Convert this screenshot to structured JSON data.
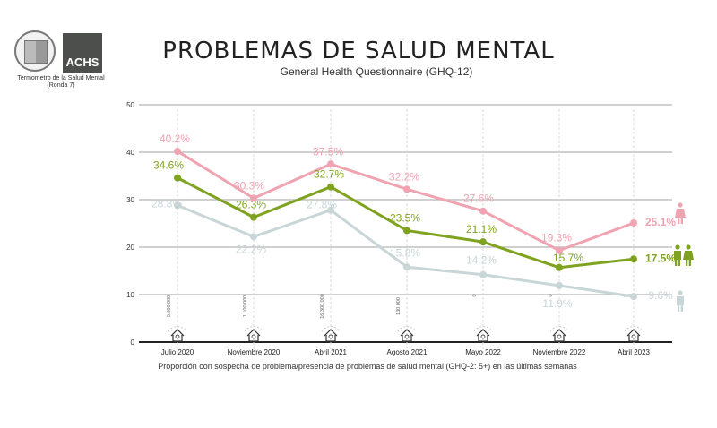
{
  "header": {
    "title": "PROBLEMAS DE SALUD MENTAL",
    "subtitle": "General Health Questionnaire (GHQ-12)",
    "logo_text": "ACHS",
    "logo_caption": "Termometro de la Salud Mental (Ronda 7)"
  },
  "colors": {
    "women": "#f0a3b1",
    "total": "#7fa321",
    "men": "#c8d6d8",
    "grid": "#b5b5b5",
    "axis": "#222222"
  },
  "chart_data": {
    "type": "line",
    "title": "PROBLEMAS DE SALUD MENTAL",
    "subtitle": "General Health Questionnaire (GHQ-12)",
    "xlabel": "Proporción con sospecha de problema/presencia de problemas de salud mental (GHQ-2: 5+) en las últimas semanas",
    "ylabel": "",
    "ylim": [
      0,
      50
    ],
    "yticks": [
      0,
      10,
      20,
      30,
      40,
      50
    ],
    "grid": true,
    "legend": "right (person icons)",
    "categories": [
      "Julio 2020",
      "Noviembre 2020",
      "Abril 2021",
      "Agosto 2021",
      "Mayo 2022",
      "Noviembre 2022",
      "Abril 2023"
    ],
    "series": [
      {
        "name": "Mujeres",
        "icon": "woman-icon",
        "values": [
          40.2,
          30.3,
          37.5,
          32.2,
          27.6,
          19.3,
          25.1
        ],
        "labels": [
          "40.2%",
          "30.3%",
          "37.5%",
          "32.2%",
          "27.6%",
          "19.3%",
          "25.1%"
        ]
      },
      {
        "name": "Total",
        "icon": "couple-icon",
        "values": [
          34.6,
          26.3,
          32.7,
          23.5,
          21.1,
          15.7,
          17.5
        ],
        "labels": [
          "34.6%",
          "26.3%",
          "32.7%",
          "23.5%",
          "21.1%",
          "15.7%",
          "17.5%"
        ]
      },
      {
        "name": "Hombres",
        "icon": "man-icon",
        "values": [
          28.8,
          22.2,
          27.8,
          15.8,
          14.2,
          11.9,
          9.6
        ],
        "labels": [
          "28.8%",
          "22.2%",
          "27.8%",
          "15.8%",
          "14.2%",
          "11.9%",
          "9.6%"
        ]
      }
    ],
    "annotations": [
      "5.000.000",
      "1.100.000",
      "16.300.000",
      "130.000",
      "0",
      "0",
      "0"
    ]
  }
}
